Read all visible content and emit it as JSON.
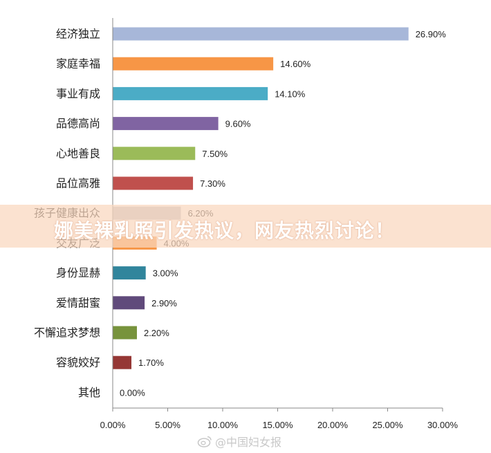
{
  "chart_data": {
    "type": "bar",
    "orientation": "horizontal",
    "categories": [
      "经济独立",
      "家庭幸福",
      "事业有成",
      "品德高尚",
      "心地善良",
      "品位高雅",
      "孩子健康出众",
      "交友广泛",
      "身份显赫",
      "爱情甜蜜",
      "不懈追求梦想",
      "容貌姣好",
      "其他"
    ],
    "values": [
      26.9,
      14.6,
      14.1,
      9.6,
      7.5,
      7.3,
      6.2,
      4.0,
      3.0,
      2.9,
      2.2,
      1.7,
      0.0
    ],
    "value_labels": [
      "26.90%",
      "14.60%",
      "14.10%",
      "9.60%",
      "7.50%",
      "7.30%",
      "6.20%",
      "4.00%",
      "3.00%",
      "2.90%",
      "2.20%",
      "1.70%",
      "0.00%"
    ],
    "colors": [
      "#a7b7d9",
      "#f79646",
      "#4bacc6",
      "#8064a2",
      "#9bbb59",
      "#c0504d",
      "#c0c0c8",
      "#f79646",
      "#31859c",
      "#604a7b",
      "#77933c",
      "#953735",
      "#4f81bd"
    ],
    "xlim": [
      0,
      30
    ],
    "x_ticks": [
      "0.00%",
      "5.00%",
      "10.00%",
      "15.00%",
      "20.00%",
      "25.00%",
      "30.00%"
    ],
    "grid": false,
    "legend": "none"
  },
  "overlay": {
    "title": "娜美裸乳照引发热议，网友热烈讨论！"
  },
  "watermark": {
    "text": "@中国妇女报",
    "icon": "weibo-icon"
  }
}
